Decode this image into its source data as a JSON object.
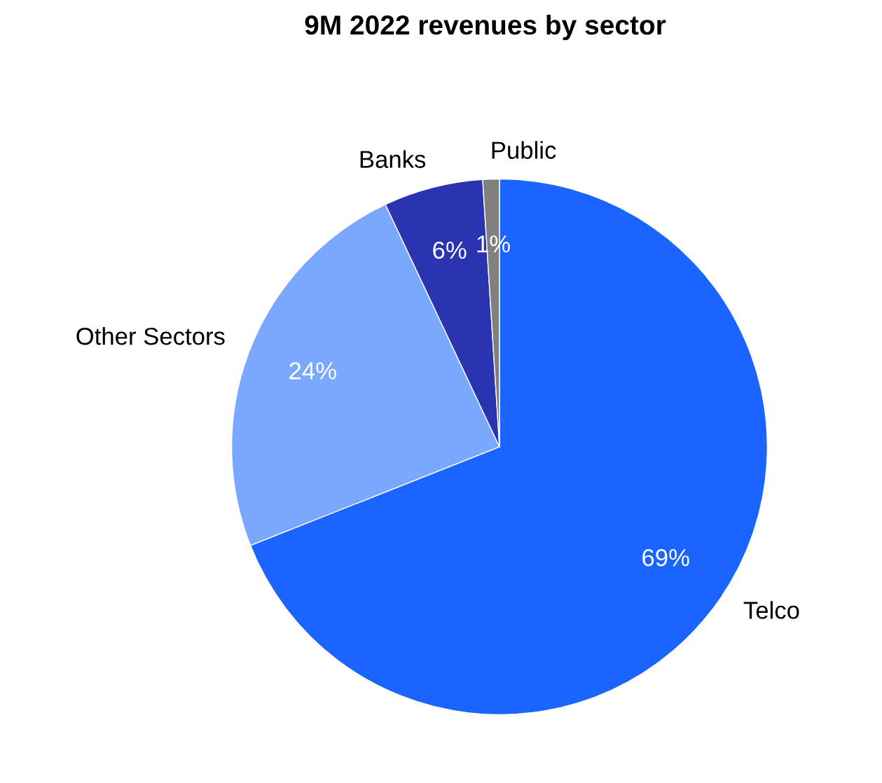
{
  "chart_data": {
    "type": "pie",
    "title": "9M 2022 revenues by sector",
    "categories": [
      "Telco",
      "Other Sectors",
      "Banks",
      "Public"
    ],
    "values": [
      69,
      24,
      6,
      1
    ],
    "value_labels": [
      "69%",
      "24%",
      "6%",
      "1%"
    ],
    "colors": [
      "#1a64ff",
      "#7aa8ff",
      "#2a33b0",
      "#808080"
    ]
  }
}
